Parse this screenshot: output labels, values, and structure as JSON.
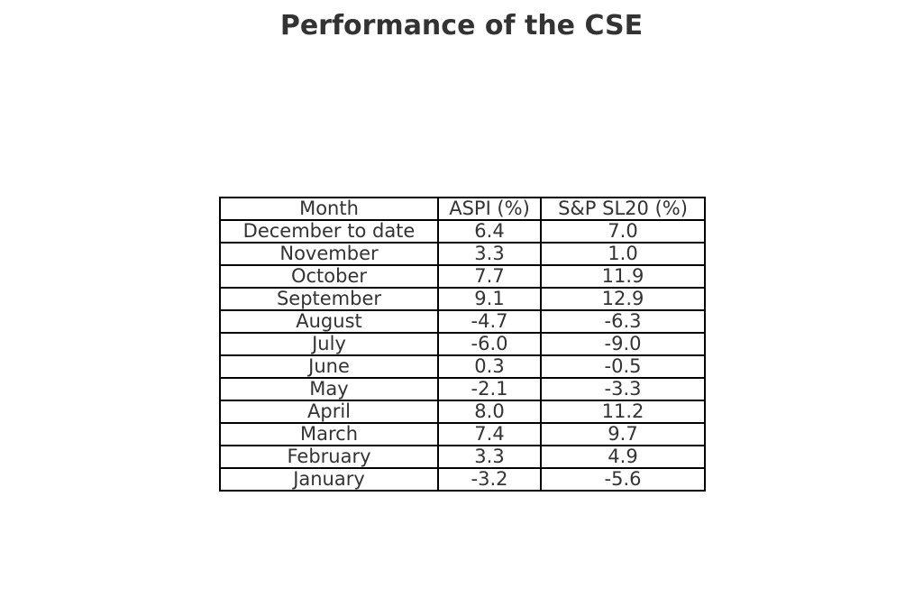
{
  "chart_data": {
    "type": "table",
    "title": "Performance of the CSE",
    "columns": [
      "Month",
      "ASPI (%)",
      "S&P SL20 (%)"
    ],
    "rows": [
      [
        "December to date",
        "6.4",
        "7.0"
      ],
      [
        "November",
        "3.3",
        "1.0"
      ],
      [
        "October",
        "7.7",
        "11.9"
      ],
      [
        "September",
        "9.1",
        "12.9"
      ],
      [
        "August",
        "-4.7",
        "-6.3"
      ],
      [
        "July",
        "-6.0",
        "-9.0"
      ],
      [
        "June",
        "0.3",
        "-0.5"
      ],
      [
        "May",
        "-2.1",
        "-3.3"
      ],
      [
        "April",
        "8.0",
        "11.2"
      ],
      [
        "March",
        "7.4",
        "9.7"
      ],
      [
        "February",
        "3.3",
        "4.9"
      ],
      [
        "January",
        "-3.2",
        "-5.6"
      ]
    ]
  },
  "colors": {
    "text": "#333333",
    "border": "#000000",
    "background": "#ffffff"
  }
}
